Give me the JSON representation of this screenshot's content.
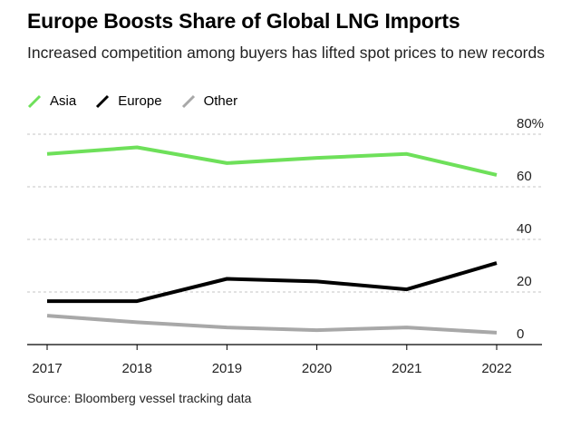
{
  "title": "Europe Boosts Share of Global LNG Imports",
  "subtitle": "Increased competition among buyers has lifted spot prices to new records",
  "source": "Source: Bloomberg vessel tracking data",
  "legend": [
    {
      "name": "Asia",
      "color": "#6ee05a"
    },
    {
      "name": "Europe",
      "color": "#000000"
    },
    {
      "name": "Other",
      "color": "#a8a8a8"
    }
  ],
  "chart_data": {
    "type": "line",
    "x": [
      "2017",
      "2018",
      "2019",
      "2020",
      "2021",
      "2022"
    ],
    "series": [
      {
        "name": "Asia",
        "color": "#6ee05a",
        "values": [
          72.5,
          75,
          69,
          71,
          72.5,
          64.5
        ]
      },
      {
        "name": "Europe",
        "color": "#000000",
        "values": [
          16.5,
          16.5,
          25,
          24,
          21,
          31
        ]
      },
      {
        "name": "Other",
        "color": "#a8a8a8",
        "values": [
          11,
          8.5,
          6.5,
          5.5,
          6.5,
          4.5
        ]
      }
    ],
    "y_ticks": [
      "80%",
      "60",
      "40",
      "20",
      "0"
    ],
    "ylim": [
      0,
      80
    ],
    "grid": true,
    "legend_position": "top-left"
  }
}
